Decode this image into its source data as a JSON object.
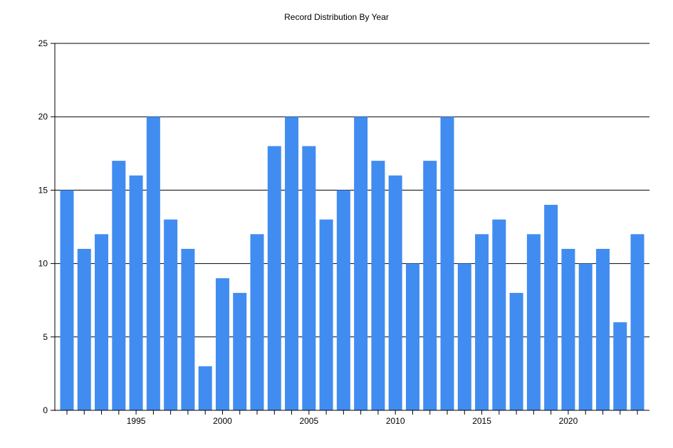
{
  "chart_data": {
    "type": "bar",
    "title": "Record Distribution By Year",
    "xlabel": "",
    "ylabel": "",
    "x": [
      1991,
      1992,
      1993,
      1994,
      1995,
      1996,
      1997,
      1998,
      1999,
      2000,
      2001,
      2002,
      2003,
      2004,
      2005,
      2006,
      2007,
      2008,
      2009,
      2010,
      2011,
      2012,
      2013,
      2014,
      2015,
      2016,
      2017,
      2018,
      2019,
      2020,
      2021,
      2022,
      2023,
      2024
    ],
    "values": [
      15,
      11,
      12,
      17,
      16,
      20,
      13,
      11,
      3,
      9,
      8,
      12,
      18,
      20,
      18,
      13,
      15,
      20,
      17,
      16,
      10,
      17,
      20,
      10,
      12,
      13,
      8,
      12,
      14,
      11,
      10,
      11,
      6,
      12
    ],
    "xticks": [
      "1995",
      "2000",
      "2005",
      "2010",
      "2015",
      "2020"
    ],
    "yticks": [
      "0",
      "5",
      "10",
      "15",
      "20",
      "25"
    ],
    "ylim": [
      0,
      25
    ],
    "xlim": [
      1990.3,
      2024.7
    ],
    "grid": "horizontal",
    "bar_color": "#418cf0"
  }
}
